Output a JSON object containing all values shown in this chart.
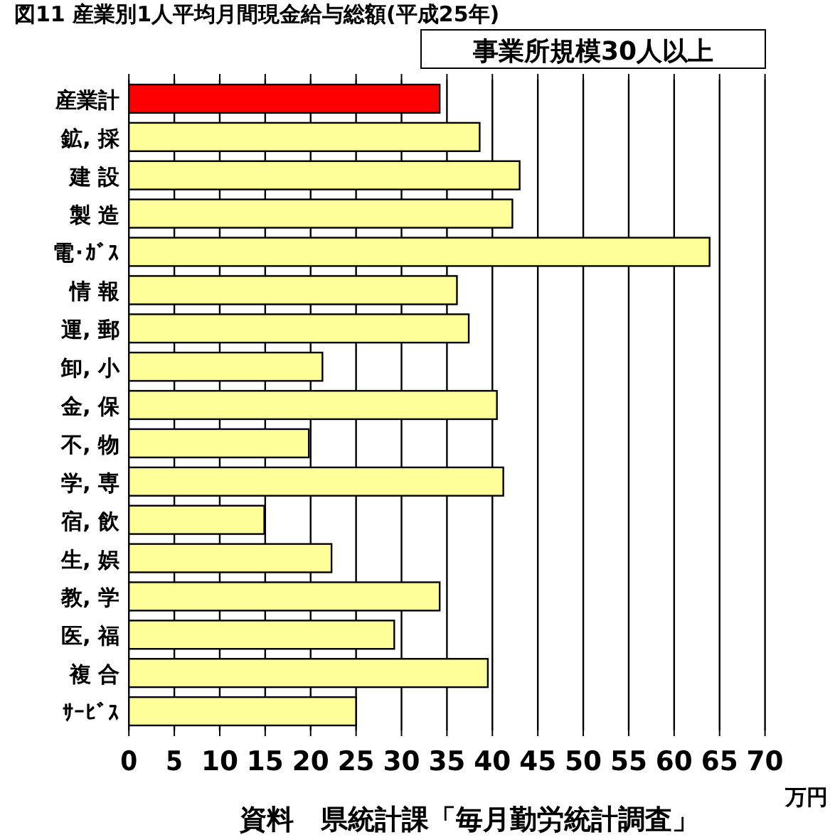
{
  "chart_data": {
    "type": "bar",
    "orientation": "horizontal",
    "title": "図11 産業別1人平均月間現金給与総額(平成25年)",
    "subtitle": "事業所規模30人以上",
    "xlabel": "万円",
    "annotations": [
      "資料　県統計課「毎月勤労統計調査」"
    ],
    "categories": [
      "産業計",
      "鉱, 採",
      "建 設",
      "製 造",
      "電･ｶﾞｽ",
      "情 報",
      "運, 郵",
      "卸, 小",
      "金, 保",
      "不, 物",
      "学, 専",
      "宿, 飲",
      "生, 娯",
      "教, 学",
      "医, 福",
      "複 合",
      "ｻｰﾋﾞｽ"
    ],
    "values": [
      34.2,
      38.6,
      43.0,
      42.2,
      63.9,
      36.1,
      37.4,
      21.3,
      40.5,
      19.8,
      41.2,
      14.9,
      22.3,
      34.2,
      29.2,
      39.5,
      25.0
    ],
    "colors": [
      "#ff0000",
      "#ffff99",
      "#ffff99",
      "#ffff99",
      "#ffff99",
      "#ffff99",
      "#ffff99",
      "#ffff99",
      "#ffff99",
      "#ffff99",
      "#ffff99",
      "#ffff99",
      "#ffff99",
      "#ffff99",
      "#ffff99",
      "#ffff99",
      "#ffff99"
    ],
    "xlim": [
      0,
      70
    ],
    "xticks": [
      0,
      5,
      10,
      15,
      20,
      25,
      30,
      35,
      40,
      45,
      50,
      55,
      60,
      65,
      70
    ],
    "grid": "x"
  }
}
